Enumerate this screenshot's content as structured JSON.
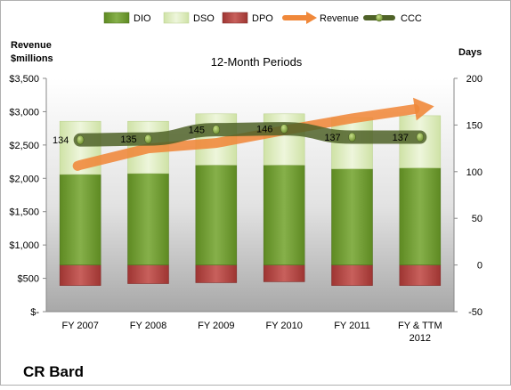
{
  "chart_data": {
    "type": "bar",
    "company": "CR Bard",
    "subtitle": "12-Month Periods",
    "left_axis_label": "Revenue\n$millions",
    "right_axis_label": "Days",
    "categories": [
      "FY 2007",
      "FY 2008",
      "FY 2009",
      "FY 2010",
      "FY 2011",
      "FY & TTM\n2012"
    ],
    "legend": [
      "DIO",
      "DSO",
      "DPO",
      "Revenue",
      "CCC"
    ],
    "legend_position": "top",
    "left_axis": {
      "ticks": [
        0,
        500,
        1000,
        1500,
        2000,
        2500,
        3000,
        3500
      ],
      "tick_labels": [
        "$-",
        "$500",
        "$1,000",
        "$1,500",
        "$2,000",
        "$2,500",
        "$3,000",
        "$3,500"
      ],
      "ylim": [
        0,
        3500
      ]
    },
    "right_axis": {
      "ticks": [
        -50,
        0,
        50,
        100,
        150,
        200
      ],
      "tick_labels": [
        "-50",
        "0",
        "50",
        "100",
        "150",
        "200"
      ],
      "ylim": [
        -50,
        200
      ]
    },
    "series": [
      {
        "name": "DIO",
        "axis": "right",
        "color": "#6f9a2e",
        "values": [
          97,
          98,
          107,
          107,
          103,
          104
        ]
      },
      {
        "name": "DSO",
        "axis": "right",
        "color": "#dfeec0",
        "values": [
          57,
          56,
          55,
          55,
          55,
          56
        ]
      },
      {
        "name": "DPO",
        "axis": "right",
        "color": "#c0504d",
        "values": [
          -22,
          -20,
          -19,
          -18,
          -22,
          -22
        ]
      },
      {
        "name": "Revenue",
        "axis": "left",
        "color": "#f0883a",
        "values": [
          2200,
          2450,
          2530,
          2720,
          2900,
          3050
        ]
      },
      {
        "name": "CCC",
        "axis": "right",
        "color": "#4f6228",
        "values": [
          134,
          135,
          145,
          146,
          137,
          137
        ]
      }
    ],
    "data_labels": [
      "134",
      "135",
      "145",
      "146",
      "137",
      "137"
    ],
    "grid": false
  }
}
